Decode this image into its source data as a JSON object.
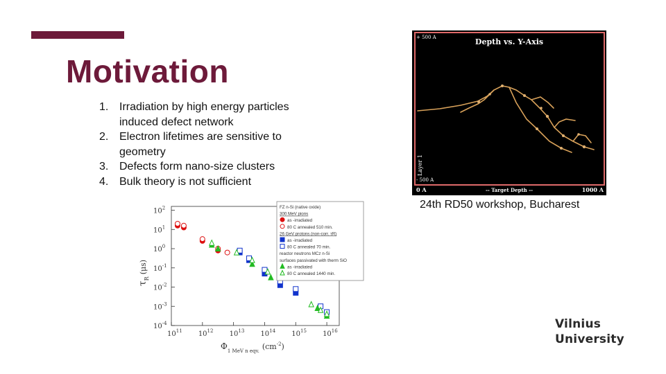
{
  "slide": {
    "title": "Motivation",
    "bullets": [
      {
        "num": "1.",
        "text": "Irradiation by high energy particles induced defect network"
      },
      {
        "num": "2.",
        "text": "Electron lifetimes are sensitive to geometry"
      },
      {
        "num": "3.",
        "text": "Defects form nano-size clusters"
      },
      {
        "num": "4.",
        "text": "Bulk theory is not sufficient"
      }
    ],
    "caption": "24th RD50 workshop, Bucharest",
    "logo": {
      "line1": "Vilnius",
      "line2": "University"
    },
    "colors": {
      "accent": "#6d1a3a",
      "track": "#d9a25a",
      "frame": "#e06a6a"
    }
  },
  "simulation_figure": {
    "title": "Depth vs. Y-Axis",
    "y_top": "+ 500 A",
    "y_bottom": "- 500 A",
    "x_left": "0 A",
    "x_mid": "-- Target Depth --",
    "x_right": "1000 A",
    "layer_label": "Layer 1"
  },
  "chart_data": {
    "type": "scatter",
    "xlabel_main": "Φ",
    "xlabel_sub": "1 MeV n eqv.",
    "xlabel_unit": "(cm",
    "xlabel_unit_sup": "-2",
    "xlabel_unit_close": ")",
    "ylabel_main": "τ",
    "ylabel_sub": "R",
    "ylabel_unit": "(μs)",
    "x_log_range": [
      11,
      16.4
    ],
    "y_log_range": [
      -4,
      2.2
    ],
    "x_ticks": [
      {
        "base": "10",
        "exp": "11",
        "v": 11
      },
      {
        "base": "10",
        "exp": "12",
        "v": 12
      },
      {
        "base": "10",
        "exp": "13",
        "v": 13
      },
      {
        "base": "10",
        "exp": "14",
        "v": 14
      },
      {
        "base": "10",
        "exp": "15",
        "v": 15
      },
      {
        "base": "10",
        "exp": "16",
        "v": 16
      }
    ],
    "y_ticks": [
      {
        "base": "10",
        "exp": "2",
        "v": 2
      },
      {
        "base": "10",
        "exp": "1",
        "v": 1
      },
      {
        "base": "10",
        "exp": "0",
        "v": 0
      },
      {
        "base": "10",
        "exp": "-1",
        "v": -1
      },
      {
        "base": "10",
        "exp": "-2",
        "v": -2
      },
      {
        "base": "10",
        "exp": "-3",
        "v": -3
      },
      {
        "base": "10",
        "exp": "-4",
        "v": -4
      }
    ],
    "legend": [
      {
        "text": "FZ n-Si (native oxide)",
        "kind": "header"
      },
      {
        "text": "300 MeV pions",
        "kind": "group"
      },
      {
        "text": "as -irradiated",
        "marker": "circle",
        "color": "#dd1111",
        "filled": true
      },
      {
        "text": "80 C annealed 510 min.",
        "marker": "circle",
        "color": "#dd1111",
        "filled": false
      },
      {
        "text": "26 GeV protons (non-corr. τR)",
        "kind": "group"
      },
      {
        "text": "as -irradiated",
        "marker": "square",
        "color": "#1133cc",
        "filled": true
      },
      {
        "text": "80 C annealed 70 min.",
        "marker": "square",
        "color": "#1133cc",
        "filled": false
      },
      {
        "text": "reactor neutrons MCz n-Si",
        "kind": "group"
      },
      {
        "text": "surfaces passivated with therm SiO",
        "kind": "group"
      },
      {
        "text": "as -irradiated",
        "marker": "triangle",
        "color": "#22bb22",
        "filled": true
      },
      {
        "text": "80 C annealed 1440 min.",
        "marker": "triangle",
        "color": "#22bb22",
        "filled": false
      }
    ],
    "series": [
      {
        "marker": "circle",
        "color": "#dd1111",
        "filled": true,
        "points": [
          [
            11.2,
            1.2
          ],
          [
            11.4,
            1.1
          ],
          [
            12.0,
            0.4
          ],
          [
            12.5,
            -0.1
          ]
        ]
      },
      {
        "marker": "circle",
        "color": "#dd1111",
        "filled": false,
        "points": [
          [
            11.2,
            1.3
          ],
          [
            11.4,
            1.2
          ],
          [
            12.0,
            0.5
          ],
          [
            12.5,
            0.0
          ],
          [
            12.8,
            -0.2
          ]
        ]
      },
      {
        "marker": "square",
        "color": "#1133cc",
        "filled": true,
        "points": [
          [
            13.2,
            -0.2
          ],
          [
            13.5,
            -0.6
          ],
          [
            14.0,
            -1.3
          ],
          [
            14.5,
            -1.9
          ],
          [
            15.0,
            -2.3
          ]
        ]
      },
      {
        "marker": "square",
        "color": "#1133cc",
        "filled": false,
        "points": [
          [
            13.2,
            -0.1
          ],
          [
            13.5,
            -0.5
          ],
          [
            14.0,
            -1.1
          ],
          [
            14.5,
            -1.7
          ],
          [
            15.0,
            -2.1
          ],
          [
            15.8,
            -3.0
          ],
          [
            16.0,
            -3.3
          ]
        ]
      },
      {
        "marker": "triangle",
        "color": "#22bb22",
        "filled": true,
        "points": [
          [
            12.3,
            0.2
          ],
          [
            12.5,
            0.0
          ],
          [
            13.6,
            -0.8
          ],
          [
            14.2,
            -1.5
          ],
          [
            15.7,
            -3.1
          ],
          [
            16.0,
            -3.5
          ]
        ]
      },
      {
        "marker": "triangle",
        "color": "#22bb22",
        "filled": false,
        "points": [
          [
            12.3,
            0.3
          ],
          [
            13.1,
            -0.2
          ],
          [
            13.6,
            -0.6
          ],
          [
            14.1,
            -1.2
          ],
          [
            15.5,
            -2.9
          ],
          [
            15.8,
            -3.2
          ],
          [
            16.0,
            -3.4
          ]
        ]
      }
    ]
  }
}
